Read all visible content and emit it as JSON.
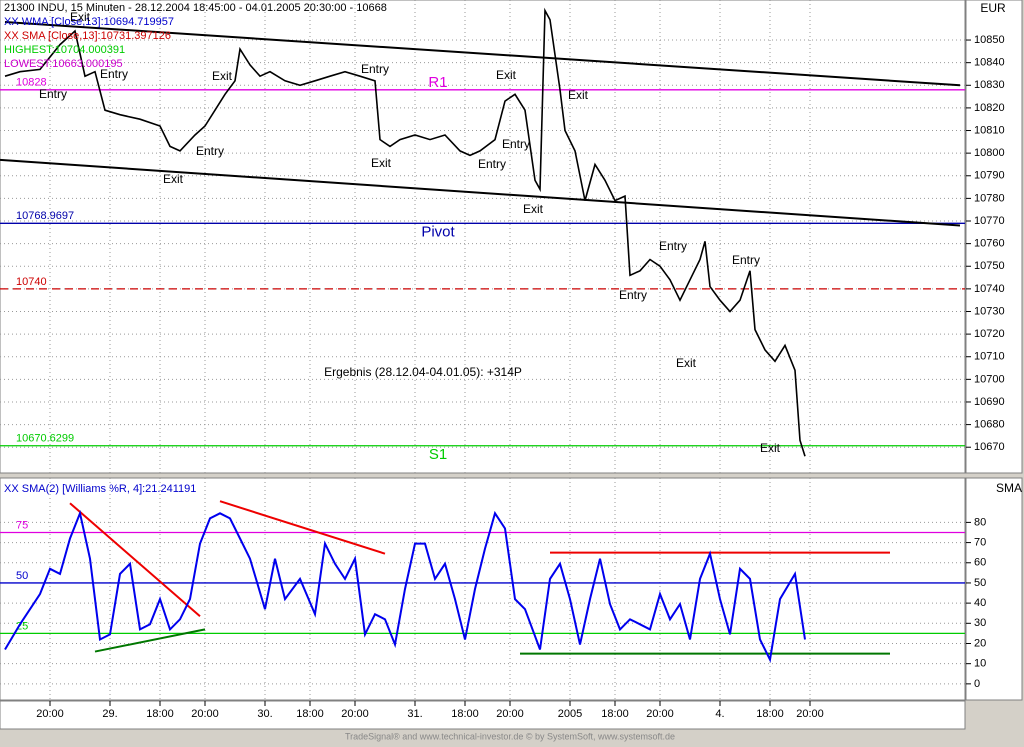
{
  "chart_data": [
    {
      "type": "line",
      "title": "21300  INDU, 15 Minuten - 28.12.2004 18:45:00 - 04.01.2005 20:30:00 - 10668",
      "legend_texts": [
        {
          "text": "XX WMA [Close,13]:10694.719957",
          "color": "#0000cc"
        },
        {
          "text": "XX SMA [Close,13]:10731.397126",
          "color": "#cc0000"
        },
        {
          "text": "HIGHEST:10704.000391",
          "color": "#00cc00"
        },
        {
          "text": "LOWEST:10663.000195",
          "color": "#cc00cc"
        }
      ],
      "axis_label": "EUR",
      "color": "#000000",
      "x": [
        1,
        4,
        8,
        12,
        15,
        17,
        19,
        21,
        24,
        28,
        32,
        34,
        36,
        39,
        41,
        43,
        45,
        47,
        48,
        50,
        52,
        54,
        57,
        60,
        63,
        66,
        69,
        72,
        75,
        76,
        78,
        80,
        83,
        86,
        89,
        92,
        94,
        96,
        99,
        101,
        103,
        105,
        107,
        108,
        109,
        110,
        112,
        113,
        115,
        117,
        119,
        121,
        123,
        125,
        126,
        128,
        130,
        132,
        134,
        136,
        138,
        140,
        141,
        142,
        144,
        146,
        148,
        150,
        151,
        153,
        155,
        157,
        159,
        160,
        161
      ],
      "values": [
        10834,
        10836,
        10837,
        10848,
        10854,
        10834,
        10836,
        10819,
        10817,
        10815,
        10812,
        10803,
        10801,
        10808,
        10812,
        10819,
        10826,
        10832,
        10846,
        10839,
        10834,
        10836,
        10832,
        10830,
        10832,
        10834,
        10836,
        10834,
        10832,
        10806,
        10803,
        10806,
        10808,
        10806,
        10808,
        10801,
        10799,
        10801,
        10806,
        10823,
        10826,
        10819,
        10788,
        10784,
        10863,
        10859,
        10828,
        10810,
        10801,
        10779,
        10795,
        10788,
        10779,
        10781,
        10746,
        10748,
        10753,
        10750,
        10744,
        10735,
        10744,
        10753,
        10761,
        10741,
        10735,
        10730,
        10735,
        10748,
        10722,
        10713,
        10708,
        10715,
        10704,
        10673,
        10666
      ],
      "xlim": [
        0,
        193
      ],
      "ylim": [
        10658.6,
        10867.7
      ],
      "yticks": [
        10670,
        10680,
        10690,
        10700,
        10710,
        10720,
        10730,
        10740,
        10750,
        10760,
        10770,
        10780,
        10790,
        10800,
        10810,
        10820,
        10830,
        10840,
        10850
      ],
      "grid": true,
      "levels": [
        {
          "value": 10828,
          "label": "R1",
          "color": "#e000e0",
          "dashed": false
        },
        {
          "value": 10768.9697,
          "label": "Pivot",
          "color": "#0000aa",
          "dashed": false
        },
        {
          "value": 10740,
          "color": "#cc0000",
          "dashed": true
        },
        {
          "value": 10670.6299,
          "label": "S1",
          "color": "#00cc00",
          "dashed": false
        }
      ],
      "trendlines": [
        {
          "x": [
            1,
            192
          ],
          "values": [
            10858,
            10830
          ],
          "color": "#000000"
        },
        {
          "x": [
            0,
            192
          ],
          "values": [
            10797,
            10768
          ],
          "color": "#000000"
        }
      ],
      "annotations": [
        {
          "text": "Entry"
        },
        {
          "text": "Exit"
        },
        {
          "text": "Entry"
        },
        {
          "text": "Exit"
        },
        {
          "text": "Exit"
        },
        {
          "text": "Entry"
        },
        {
          "text": "Entry"
        },
        {
          "text": "Exit"
        },
        {
          "text": "Exit"
        },
        {
          "text": "Entry"
        },
        {
          "text": "Entry"
        },
        {
          "text": "Exit"
        },
        {
          "text": "Exit"
        },
        {
          "text": "Entry"
        },
        {
          "text": "Entry"
        },
        {
          "text": "Entry"
        },
        {
          "text": "Exit"
        },
        {
          "text": "Exit"
        },
        {
          "text": "Ergebnis (28.12.04-04.01.05): +314P"
        }
      ]
    },
    {
      "type": "line",
      "title": "XX SMA(2) [Williams %R, 4]:21.241191",
      "axis_label": "SMA",
      "color": "#0000ee",
      "x": [
        1,
        4,
        8,
        10,
        12,
        14,
        16,
        18,
        20,
        22,
        24,
        26,
        28,
        30,
        32,
        34,
        36,
        38,
        40,
        42,
        44,
        46,
        48,
        50,
        53,
        55,
        57,
        60,
        63,
        65,
        67,
        69,
        71,
        73,
        75,
        77,
        79,
        81,
        83,
        85,
        87,
        89,
        91,
        93,
        95,
        97,
        99,
        101,
        103,
        105,
        108,
        110,
        112,
        114,
        116,
        118,
        120,
        122,
        124,
        126,
        128,
        130,
        132,
        134,
        136,
        138,
        140,
        142,
        144,
        146,
        148,
        150,
        152,
        154,
        156,
        159,
        161
      ],
      "values": [
        17,
        29.5,
        44.5,
        57,
        54.5,
        72,
        84.5,
        62,
        22,
        24.5,
        54.5,
        59.5,
        27,
        29.5,
        42,
        27,
        32,
        42,
        69.5,
        82,
        84.5,
        82,
        72,
        62,
        37,
        62,
        42,
        52,
        34.5,
        69.5,
        59.5,
        52,
        62,
        24.5,
        34.5,
        32,
        19.5,
        47,
        69.5,
        69.5,
        52,
        59.5,
        42,
        22,
        47,
        67,
        84.5,
        77,
        42,
        37,
        17,
        52,
        59.5,
        42,
        19.5,
        42,
        62,
        39.5,
        27,
        32,
        29.5,
        27,
        44.5,
        32,
        39.5,
        22,
        52,
        64.5,
        42,
        24.5,
        57,
        52,
        22,
        12,
        42,
        54.5,
        22
      ],
      "xlim": [
        0,
        193
      ],
      "ylim": [
        -8,
        102
      ],
      "yticks": [
        0,
        10,
        20,
        30,
        40,
        50,
        60,
        70,
        80
      ],
      "xticks": [
        {
          "value": 10,
          "label": "20:00"
        },
        {
          "value": 22,
          "label": "29."
        },
        {
          "value": 32,
          "label": "18:00"
        },
        {
          "value": 41,
          "label": "20:00"
        },
        {
          "value": 53,
          "label": "30."
        },
        {
          "value": 62,
          "label": "18:00"
        },
        {
          "value": 71,
          "label": "20:00"
        },
        {
          "value": 83,
          "label": "31."
        },
        {
          "value": 93,
          "label": "18:00"
        },
        {
          "value": 102,
          "label": "20:00"
        },
        {
          "value": 114,
          "label": "2005"
        },
        {
          "value": 123,
          "label": "18:00"
        },
        {
          "value": 132,
          "label": "20:00"
        },
        {
          "value": 144,
          "label": "4."
        },
        {
          "value": 154,
          "label": "18:00"
        },
        {
          "value": 162,
          "label": "20:00"
        }
      ],
      "grid": true,
      "levels": [
        {
          "value": 75,
          "color": "#e000e0",
          "dashed": false
        },
        {
          "value": 50,
          "color": "#0000cc",
          "dashed": false
        },
        {
          "value": 25,
          "color": "#00cc00",
          "dashed": false
        }
      ],
      "trendlines": [
        {
          "x": [
            14,
            40
          ],
          "values": [
            89.5,
            33.5
          ],
          "color": "#ee0000"
        },
        {
          "x": [
            19,
            41
          ],
          "values": [
            16,
            27
          ],
          "color": "#007700"
        },
        {
          "x": [
            44,
            77
          ],
          "values": [
            90.5,
            64.5
          ],
          "color": "#ee0000"
        },
        {
          "x": [
            110,
            178
          ],
          "values": [
            65,
            65
          ],
          "color": "#ee0000"
        },
        {
          "x": [
            104,
            178
          ],
          "values": [
            15,
            15
          ],
          "color": "#007700"
        }
      ]
    }
  ],
  "footer": "TradeSignal® and www.technical-investor.de © by SystemSoft, www.systemsoft.de"
}
